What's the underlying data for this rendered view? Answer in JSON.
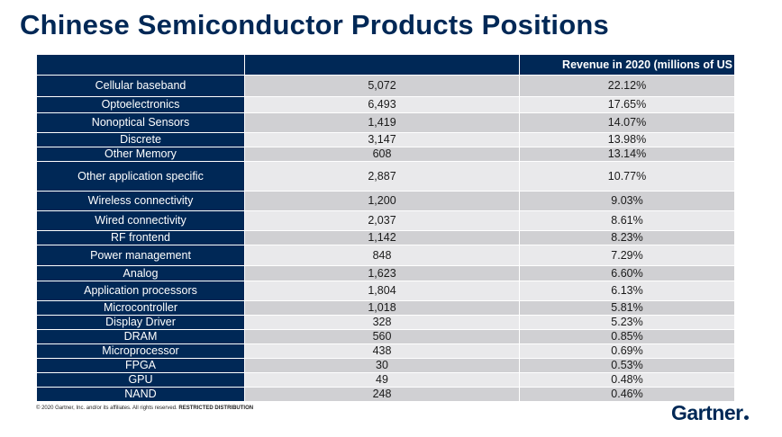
{
  "title": "Chinese Semiconductor Products Positions",
  "table": {
    "headers": [
      "",
      "",
      "Revenue in 2020 (millions of US"
    ],
    "rows": [
      {
        "label": "Cellular baseband",
        "revenue": "5,072",
        "share": "22.12%"
      },
      {
        "label": "Optoelectronics",
        "revenue": "6,493",
        "share": "17.65%"
      },
      {
        "label": "Nonoptical Sensors",
        "revenue": "1,419",
        "share": "14.07%"
      },
      {
        "label": "Discrete",
        "revenue": "3,147",
        "share": "13.98%"
      },
      {
        "label": "Other Memory",
        "revenue": "608",
        "share": "13.14%"
      },
      {
        "label": "Other application specific",
        "revenue": "2,887",
        "share": "10.77%"
      },
      {
        "label": "Wireless connectivity",
        "revenue": "1,200",
        "share": "9.03%"
      },
      {
        "label": "Wired connectivity",
        "revenue": "2,037",
        "share": "8.61%"
      },
      {
        "label": "RF frontend",
        "revenue": "1,142",
        "share": "8.23%"
      },
      {
        "label": "Power management",
        "revenue": "848",
        "share": "7.29%"
      },
      {
        "label": "Analog",
        "revenue": "1,623",
        "share": "6.60%"
      },
      {
        "label": "Application processors",
        "revenue": "1,804",
        "share": "6.13%"
      },
      {
        "label": "Microcontroller",
        "revenue": "1,018",
        "share": "5.81%"
      },
      {
        "label": "Display Driver",
        "revenue": "328",
        "share": "5.23%"
      },
      {
        "label": "DRAM",
        "revenue": "560",
        "share": "0.85%"
      },
      {
        "label": "Microprocessor",
        "revenue": "438",
        "share": "0.69%"
      },
      {
        "label": "FPGA",
        "revenue": "30",
        "share": "0.53%"
      },
      {
        "label": "GPU",
        "revenue": "49",
        "share": "0.48%"
      },
      {
        "label": "NAND",
        "revenue": "248",
        "share": "0.46%"
      }
    ]
  },
  "footer": {
    "copyright": "© 2020 Gartner, Inc. and/or its affiliates. All rights reserved.",
    "restricted": "RESTRICTED DISTRIBUTION"
  },
  "logo": {
    "text": "Gartner"
  },
  "colors": {
    "brand_navy": "#002856",
    "row_dark": "#d0d0d3",
    "row_light": "#e9e9eb"
  }
}
